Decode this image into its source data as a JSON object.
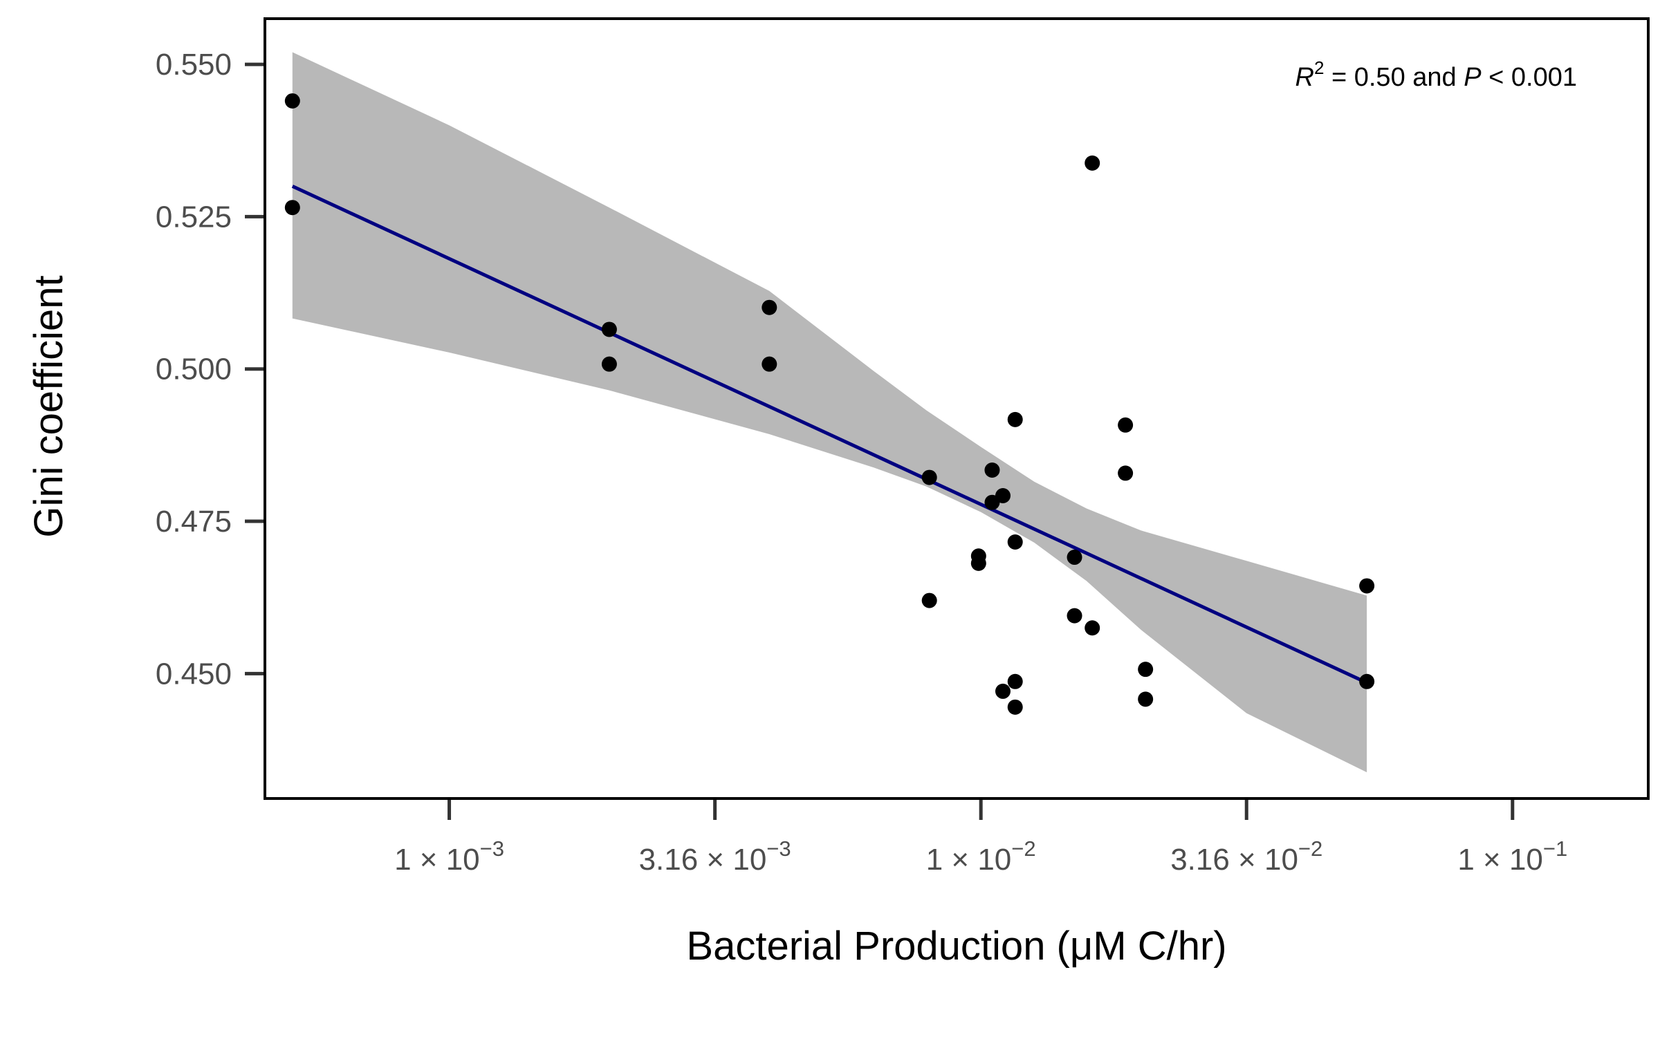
{
  "chart_data": {
    "type": "scatter",
    "xlabel": "Bacterial Production (μM C/hr)",
    "ylabel": "Gini coefficient",
    "x_scale": "log10",
    "xlim": [
      0.00045,
      0.18
    ],
    "ylim": [
      0.4295,
      0.5575
    ],
    "x_ticks": [
      {
        "value": 0.001,
        "mant": "1",
        "exp": "−3"
      },
      {
        "value": 0.00316,
        "mant": "3.16",
        "exp": "−3"
      },
      {
        "value": 0.01,
        "mant": "1",
        "exp": "−2"
      },
      {
        "value": 0.0316,
        "mant": "3.16",
        "exp": "−2"
      },
      {
        "value": 0.1,
        "mant": "1",
        "exp": "−1"
      }
    ],
    "y_ticks": [
      {
        "value": 0.45,
        "label": "0.450"
      },
      {
        "value": 0.475,
        "label": "0.475"
      },
      {
        "value": 0.5,
        "label": "0.500"
      },
      {
        "value": 0.525,
        "label": "0.525"
      },
      {
        "value": 0.55,
        "label": "0.550"
      }
    ],
    "annotation": {
      "r2_symbol": "R",
      "r2_exp": "2",
      "mid": " = 0.50 and ",
      "p_symbol": "P",
      "tail": " < 0.001"
    },
    "points": [
      {
        "x": 0.000507,
        "y": 0.544
      },
      {
        "x": 0.000507,
        "y": 0.5265
      },
      {
        "x": 0.002,
        "y": 0.5065
      },
      {
        "x": 0.002,
        "y": 0.5008
      },
      {
        "x": 0.004,
        "y": 0.5101
      },
      {
        "x": 0.004,
        "y": 0.5008
      },
      {
        "x": 0.008,
        "y": 0.4822
      },
      {
        "x": 0.008,
        "y": 0.462
      },
      {
        "x": 0.0099,
        "y": 0.4693
      },
      {
        "x": 0.0099,
        "y": 0.4681
      },
      {
        "x": 0.0105,
        "y": 0.4834
      },
      {
        "x": 0.0105,
        "y": 0.4781
      },
      {
        "x": 0.011,
        "y": 0.4792
      },
      {
        "x": 0.011,
        "y": 0.4471
      },
      {
        "x": 0.0116,
        "y": 0.4917
      },
      {
        "x": 0.0116,
        "y": 0.4716
      },
      {
        "x": 0.0116,
        "y": 0.4487
      },
      {
        "x": 0.0116,
        "y": 0.4445
      },
      {
        "x": 0.015,
        "y": 0.4691
      },
      {
        "x": 0.015,
        "y": 0.4595
      },
      {
        "x": 0.0162,
        "y": 0.5338
      },
      {
        "x": 0.0162,
        "y": 0.4575
      },
      {
        "x": 0.0187,
        "y": 0.4908
      },
      {
        "x": 0.0187,
        "y": 0.4829
      },
      {
        "x": 0.0204,
        "y": 0.4507
      },
      {
        "x": 0.0204,
        "y": 0.4458
      },
      {
        "x": 0.0532,
        "y": 0.4644
      },
      {
        "x": 0.0532,
        "y": 0.4487
      }
    ],
    "fit_line": [
      {
        "x": 0.000507,
        "y": 0.53
      },
      {
        "x": 0.0532,
        "y": 0.4485
      }
    ],
    "ci_band": [
      {
        "x": 0.000507,
        "lo": 0.5083,
        "hi": 0.552
      },
      {
        "x": 0.001,
        "lo": 0.5027,
        "hi": 0.54
      },
      {
        "x": 0.002,
        "lo": 0.4965,
        "hi": 0.5265
      },
      {
        "x": 0.004,
        "lo": 0.4893,
        "hi": 0.5128
      },
      {
        "x": 0.0063,
        "lo": 0.4838,
        "hi": 0.4996
      },
      {
        "x": 0.0079,
        "lo": 0.4807,
        "hi": 0.4932
      },
      {
        "x": 0.01,
        "lo": 0.4765,
        "hi": 0.4872
      },
      {
        "x": 0.0126,
        "lo": 0.4715,
        "hi": 0.4815
      },
      {
        "x": 0.0158,
        "lo": 0.4652,
        "hi": 0.4771
      },
      {
        "x": 0.02,
        "lo": 0.4572,
        "hi": 0.4735
      },
      {
        "x": 0.0316,
        "lo": 0.4435,
        "hi": 0.4685
      },
      {
        "x": 0.0532,
        "lo": 0.4338,
        "hi": 0.4628
      }
    ],
    "colors": {
      "line": "#000080",
      "band": "#b8b8b8",
      "point": "#000000",
      "frame": "#000000",
      "tick": "#333333",
      "tick_label": "#4d4d4d"
    },
    "grid": false,
    "legend": "none"
  }
}
